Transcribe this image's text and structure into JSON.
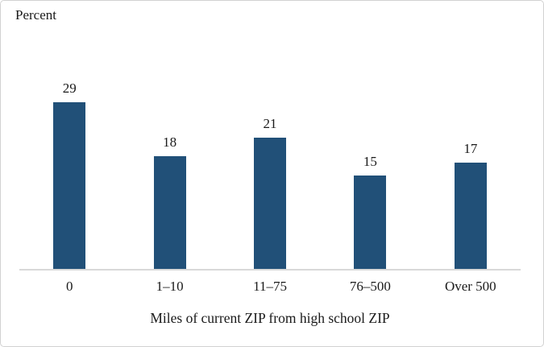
{
  "chart_data": {
    "type": "bar",
    "ylabel": "Percent",
    "xlabel": "Miles of current ZIP from high school ZIP",
    "categories": [
      "0",
      "1–10",
      "11–75",
      "76–500",
      "Over 500"
    ],
    "values": [
      29,
      18,
      21,
      15,
      17
    ],
    "ylim": [
      0,
      30
    ],
    "grid": false,
    "legend": "none",
    "data_labels": true,
    "bar_color": "#215078",
    "axis_line_color": "#d9d9d9",
    "text_color": "#1a1a1a"
  }
}
